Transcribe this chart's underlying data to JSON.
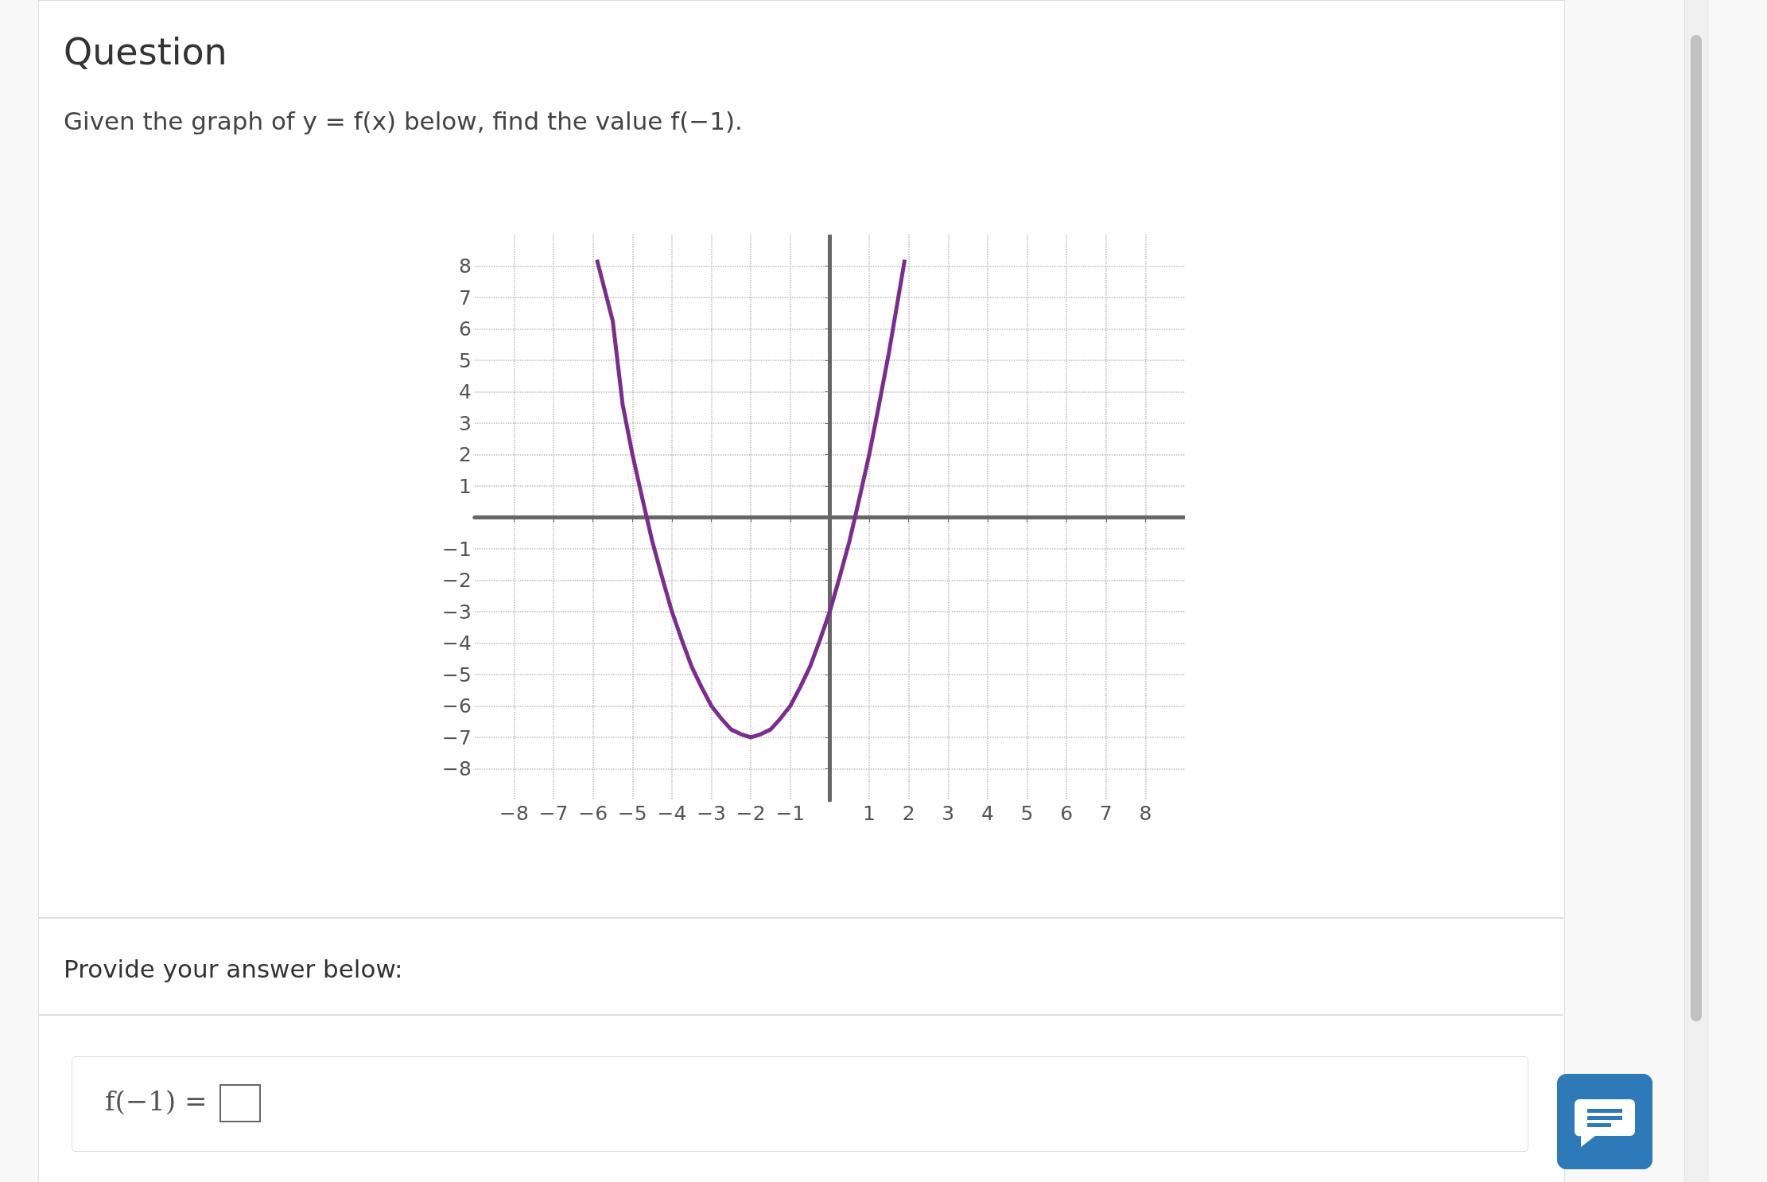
{
  "chart_data": {
    "type": "line",
    "title": "Question",
    "subtitle": "Given the graph of y = f(x) below, find the value f(−1).",
    "annotations": [
      "Provide your answer below:",
      "f(−1) ="
    ],
    "x": [
      -5.9,
      -5.5,
      -5.25,
      -5,
      -4.75,
      -4.5,
      -4.25,
      -4,
      -3.75,
      -3.5,
      -3.25,
      -3,
      -2.75,
      -2.5,
      -2.25,
      -2,
      -1.75,
      -1.5,
      -1.25,
      -1,
      -0.75,
      -0.5,
      -0.25,
      0,
      0.25,
      0.5,
      0.75,
      1,
      1.25,
      1.5,
      1.75,
      1.9
    ],
    "series": [
      {
        "color": "#7b2d8e",
        "values": [
          8.2,
          6.25,
          3.6,
          2,
          0.6,
          -0.75,
          -1.9,
          -3,
          -3.9,
          -4.75,
          -5.4,
          -6,
          -6.4,
          -6.75,
          -6.9,
          -7,
          -6.9,
          -6.75,
          -6.4,
          -6,
          -5.4,
          -4.75,
          -3.9,
          -3,
          -1.9,
          -0.75,
          0.6,
          2,
          3.6,
          5.25,
          7.1,
          8.2
        ]
      }
    ],
    "xlim": [
      -9,
      9
    ],
    "ylim": [
      -9,
      9
    ],
    "xticks": [
      {
        "value": -8,
        "label": "−8"
      },
      {
        "value": -7,
        "label": "−7"
      },
      {
        "value": -6,
        "label": "−6"
      },
      {
        "value": -5,
        "label": "−5"
      },
      {
        "value": -4,
        "label": "−4"
      },
      {
        "value": -3,
        "label": "−3"
      },
      {
        "value": -2,
        "label": "−2"
      },
      {
        "value": -1,
        "label": "−1"
      },
      1,
      2,
      3,
      4,
      5,
      6,
      7,
      8
    ],
    "yticks": [
      {
        "value": -8,
        "label": "−8"
      },
      {
        "value": -7,
        "label": "−7"
      },
      {
        "value": -6,
        "label": "−6"
      },
      {
        "value": -5,
        "label": "−5"
      },
      {
        "value": -4,
        "label": "−4"
      },
      {
        "value": -3,
        "label": "−3"
      },
      {
        "value": -2,
        "label": "−2"
      },
      {
        "value": -1,
        "label": "−1"
      },
      1,
      2,
      3,
      4,
      5,
      6,
      7,
      8
    ],
    "grid": true
  }
}
